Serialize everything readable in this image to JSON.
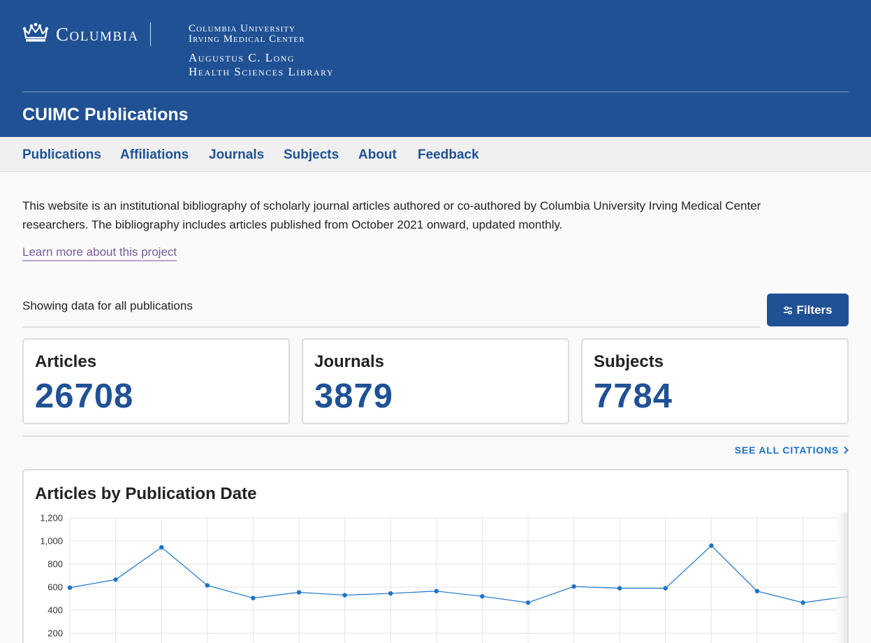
{
  "header": {
    "wordmark": "Columbia",
    "subtitle_lines": [
      "Columbia University",
      "Irving Medical Center"
    ],
    "library_lines": [
      "Augustus C. Long",
      "Health Sciences Library"
    ],
    "site_title": "CUIMC Publications"
  },
  "nav": {
    "items": [
      "Publications",
      "Affiliations",
      "Journals",
      "Subjects",
      "About",
      "Feedback"
    ]
  },
  "intro": {
    "text": "This website is an institutional bibliography of scholarly journal articles authored or co-authored by Columbia University Irving Medical Center researchers. The bibliography includes articles published from October 2021 onward, updated monthly.",
    "learn_more": "Learn more about this project"
  },
  "filters": {
    "showing": "Showing data for all publications",
    "button_label": "Filters",
    "icon": "sliders-icon"
  },
  "stats": [
    {
      "label": "Articles",
      "value": "26708"
    },
    {
      "label": "Journals",
      "value": "3879"
    },
    {
      "label": "Subjects",
      "value": "7784"
    }
  ],
  "see_all": "SEE ALL CITATIONS",
  "colors": {
    "brand_blue": "#1f5194",
    "link_blue": "#1a73c8",
    "visited_link": "#7a5b9c",
    "series_line": "#1a73c8"
  },
  "chart_data": {
    "type": "line",
    "title": "Articles by Publication Date",
    "ylim": [
      0,
      1200
    ],
    "yticks": [
      "1,200",
      "1,000",
      "800",
      "600",
      "400",
      "200"
    ],
    "grid": true,
    "series": [
      {
        "values": [
          595,
          665,
          945,
          615,
          505,
          555,
          530,
          545,
          565,
          520,
          465,
          605,
          590,
          590,
          960,
          565,
          465,
          520
        ]
      }
    ]
  }
}
